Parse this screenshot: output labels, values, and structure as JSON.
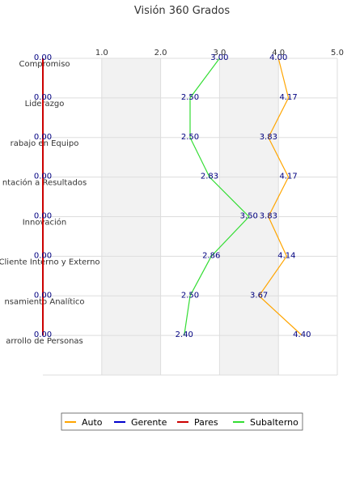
{
  "chart_data": {
    "type": "line",
    "orientation": "horizontal",
    "title": "Visión 360 Grados",
    "xlim": [
      0,
      5
    ],
    "xticks": [
      "1.0",
      "2.0",
      "3.0",
      "4.0",
      "5.0"
    ],
    "categories": [
      "Compromiso",
      "Liderazgo",
      "Trabajo en Equipo",
      "Orientación a Resultados",
      "Innovación",
      "Servicio al Cliente Interno y Externo",
      "Pensamiento Analítico",
      "Desarrollo de Personas"
    ],
    "category_display": [
      "Compromiso",
      "Liderazgo",
      "rabajo en Equipo",
      "ntación a Resultados",
      "Innovación",
      "al Cliente Interno y Externo",
      "nsamiento Analítico",
      "arrollo de Personas"
    ],
    "series": [
      {
        "name": "Auto",
        "color": "#ffa500",
        "values": [
          4.0,
          4.17,
          3.83,
          4.17,
          3.83,
          4.14,
          3.67,
          4.4
        ],
        "labels": [
          "4.00",
          "4.17",
          "3.83",
          "4.17",
          "3.83",
          "4.14",
          "3.67",
          "4.40"
        ]
      },
      {
        "name": "Gerente",
        "color": "#0000cc",
        "values": [
          0,
          0,
          0,
          0,
          0,
          0,
          0,
          0
        ],
        "labels": [
          "",
          "",
          "",
          "",
          "",
          "",
          "",
          ""
        ]
      },
      {
        "name": "Pares",
        "color": "#cc0000",
        "values": [
          0,
          0,
          0,
          0,
          0,
          0,
          0,
          0
        ],
        "labels": [
          "0.00",
          "0.00",
          "0.00",
          "0.00",
          "0.00",
          "0.00",
          "0.00",
          "0.00"
        ]
      },
      {
        "name": "Subalterno",
        "color": "#33dd33",
        "values": [
          3.0,
          2.5,
          2.5,
          2.83,
          3.5,
          2.86,
          2.5,
          2.4
        ],
        "labels": [
          "3.00",
          "2.50",
          "2.50",
          "2.83",
          "3.50",
          "2.86",
          "2.50",
          "2.40"
        ]
      }
    ],
    "grid": true,
    "legend_position": "bottom"
  }
}
